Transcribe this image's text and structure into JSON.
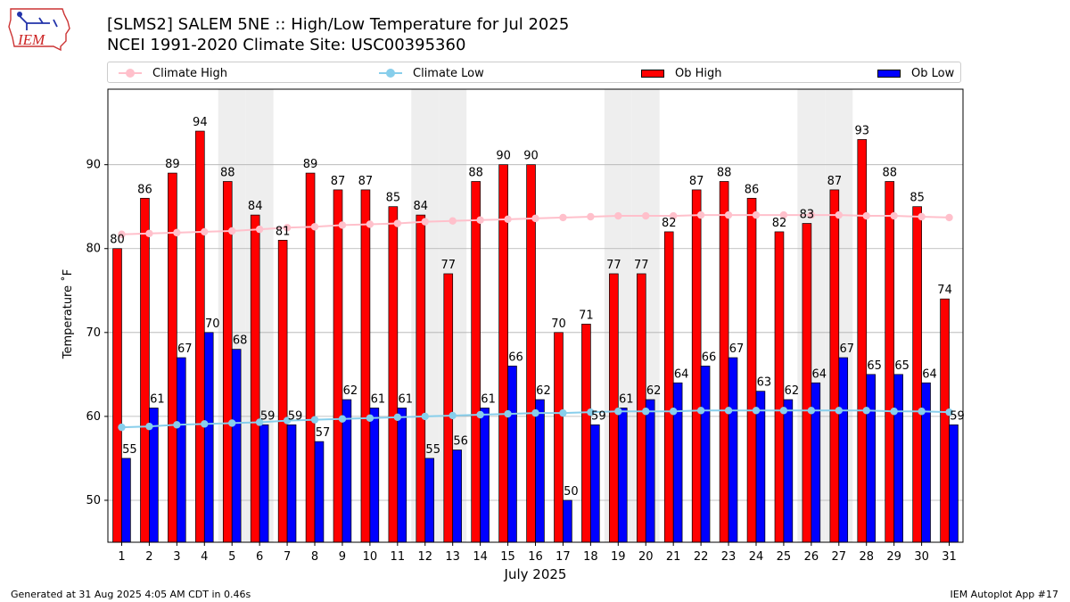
{
  "title_line1": "[SLMS2] SALEM 5NE :: High/Low Temperature for Jul 2025",
  "title_line2": "NCEI 1991-2020 Climate Site: USC00395360",
  "logo_text": "IEM",
  "footer_left": "Generated at 31 Aug 2025 4:05 AM CDT in 0.46s",
  "footer_right": "IEM Autoplot App #17",
  "colors": {
    "ob_high": "#ff0000",
    "ob_low": "#0000ff",
    "climate_high": "#ffc0cb",
    "climate_low": "#87ceeb",
    "weekend_shade": "#eeeeee",
    "grid": "#b0b0b0"
  },
  "chart_data": {
    "type": "bar",
    "title": "[SLMS2] SALEM 5NE :: High/Low Temperature for Jul 2025",
    "xlabel": "July 2025",
    "ylabel": "Temperature ˚F",
    "ylim": [
      45,
      99
    ],
    "yticks": [
      50,
      60,
      70,
      80,
      90
    ],
    "grid": true,
    "legend": [
      {
        "label": "Climate High",
        "kind": "line",
        "color": "#ffc0cb"
      },
      {
        "label": "Climate Low",
        "kind": "line",
        "color": "#87ceeb"
      },
      {
        "label": "Ob High",
        "kind": "bar",
        "color": "#ff0000"
      },
      {
        "label": "Ob Low",
        "kind": "bar",
        "color": "#0000ff"
      }
    ],
    "categories": [
      "1",
      "2",
      "3",
      "4",
      "5",
      "6",
      "7",
      "8",
      "9",
      "10",
      "11",
      "12",
      "13",
      "14",
      "15",
      "16",
      "17",
      "18",
      "19",
      "20",
      "21",
      "22",
      "23",
      "24",
      "25",
      "26",
      "27",
      "28",
      "29",
      "30",
      "31"
    ],
    "weekend_days": [
      5,
      6,
      12,
      13,
      19,
      20,
      26,
      27
    ],
    "series": [
      {
        "name": "Ob High",
        "kind": "bar",
        "values": [
          80,
          86,
          89,
          94,
          88,
          84,
          81,
          89,
          87,
          87,
          85,
          84,
          77,
          88,
          90,
          90,
          70,
          71,
          77,
          77,
          82,
          87,
          88,
          86,
          82,
          83,
          87,
          93,
          88,
          85,
          74
        ]
      },
      {
        "name": "Ob Low",
        "kind": "bar",
        "values": [
          55,
          61,
          67,
          70,
          68,
          59,
          59,
          57,
          62,
          61,
          61,
          55,
          56,
          61,
          66,
          62,
          50,
          59,
          61,
          62,
          64,
          66,
          67,
          63,
          62,
          64,
          67,
          65,
          65,
          64,
          59
        ]
      },
      {
        "name": "Climate High",
        "kind": "line",
        "values": [
          81.7,
          81.8,
          81.9,
          82.0,
          82.1,
          82.3,
          82.5,
          82.6,
          82.8,
          82.9,
          83.0,
          83.2,
          83.3,
          83.4,
          83.5,
          83.6,
          83.7,
          83.8,
          83.9,
          83.9,
          83.9,
          84.0,
          84.0,
          84.0,
          84.0,
          84.0,
          84.0,
          83.9,
          83.9,
          83.8,
          83.7
        ]
      },
      {
        "name": "Climate Low",
        "kind": "line",
        "values": [
          58.7,
          58.8,
          59.0,
          59.1,
          59.2,
          59.3,
          59.5,
          59.6,
          59.7,
          59.8,
          59.9,
          60.0,
          60.1,
          60.2,
          60.3,
          60.4,
          60.4,
          60.5,
          60.6,
          60.6,
          60.6,
          60.7,
          60.7,
          60.7,
          60.7,
          60.7,
          60.7,
          60.7,
          60.6,
          60.6,
          60.5
        ]
      }
    ]
  }
}
